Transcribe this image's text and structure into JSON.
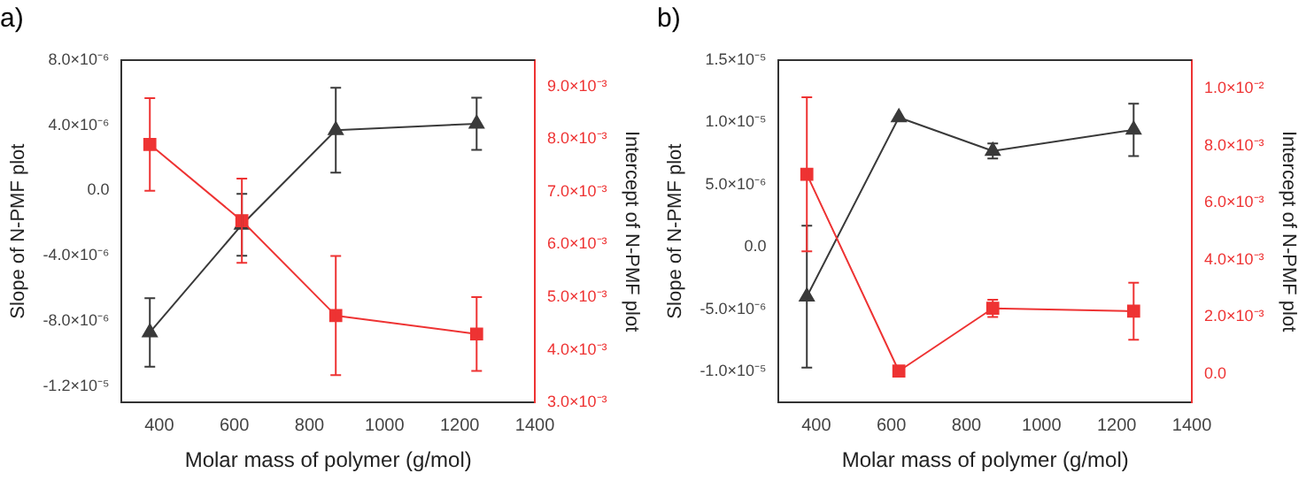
{
  "chart_data": [
    {
      "type": "line",
      "title": "a)",
      "xlabel": "Molar mass of polymer (g/mol)",
      "ylabel": "Slope of N-PMF plot",
      "y2label": "Intercept of N-PMF plot",
      "x": [
        375,
        620,
        870,
        1245
      ],
      "xlim": [
        300,
        1400
      ],
      "xticks": [
        400,
        600,
        800,
        1000,
        1200,
        1400
      ],
      "ylim": [
        -1.3e-05,
        8e-06
      ],
      "yticks": [
        {
          "value": -1.2e-05,
          "label": "-1.2×10⁻⁵"
        },
        {
          "value": -8e-06,
          "label": "-8.0×10⁻⁶"
        },
        {
          "value": -4e-06,
          "label": "-4.0×10⁻⁶"
        },
        {
          "value": 0,
          "label": "0.0"
        },
        {
          "value": 4e-06,
          "label": "4.0×10⁻⁶"
        },
        {
          "value": 8e-06,
          "label": "8.0×10⁻⁶"
        }
      ],
      "y2lim": [
        0.003,
        0.0095
      ],
      "y2ticks": [
        {
          "value": 0.003,
          "label": "3.0×10⁻³"
        },
        {
          "value": 0.004,
          "label": "4.0×10⁻³"
        },
        {
          "value": 0.005,
          "label": "5.0×10⁻³"
        },
        {
          "value": 0.006,
          "label": "6.0×10⁻³"
        },
        {
          "value": 0.007,
          "label": "7.0×10⁻³"
        },
        {
          "value": 0.008,
          "label": "8.0×10⁻³"
        },
        {
          "value": 0.009,
          "label": "9.0×10⁻³"
        }
      ],
      "series": [
        {
          "color": "#3a3a3a",
          "marker": "triangle",
          "values": [
            -8.7e-06,
            -2.1e-06,
            3.7e-06,
            4.1e-06
          ],
          "errors": [
            2.1e-06,
            1.9e-06,
            2.6e-06,
            1.6e-06
          ]
        },
        {
          "color": "#ee3333",
          "marker": "square",
          "axis": "y2",
          "values": [
            0.0079,
            0.00645,
            0.00465,
            0.0043
          ],
          "errors": [
            0.00088,
            0.0008,
            0.00113,
            0.0007
          ]
        }
      ]
    },
    {
      "type": "line",
      "title": "b)",
      "xlabel": "Molar mass of polymer (g/mol)",
      "ylabel": "Slope of N-PMF plot",
      "y2label": "Intercept of N-PMF plot",
      "x": [
        375,
        620,
        870,
        1245
      ],
      "xlim": [
        300,
        1400
      ],
      "xticks": [
        400,
        600,
        800,
        1000,
        1200,
        1400
      ],
      "ylim": [
        -1.25e-05,
        1.5e-05
      ],
      "yticks": [
        {
          "value": -1e-05,
          "label": "-1.0×10⁻⁵"
        },
        {
          "value": -5e-06,
          "label": "-5.0×10⁻⁶"
        },
        {
          "value": 0,
          "label": "0.0"
        },
        {
          "value": 5e-06,
          "label": "5.0×10⁻⁶"
        },
        {
          "value": 1e-05,
          "label": "1.0×10⁻⁵"
        },
        {
          "value": 1.5e-05,
          "label": "1.5×10⁻⁵"
        }
      ],
      "y2lim": [
        -0.001,
        0.011
      ],
      "y2ticks": [
        {
          "value": 0,
          "label": "0.0"
        },
        {
          "value": 0.002,
          "label": "2.0×10⁻³"
        },
        {
          "value": 0.004,
          "label": "4.0×10⁻³"
        },
        {
          "value": 0.006,
          "label": "6.0×10⁻³"
        },
        {
          "value": 0.008,
          "label": "8.0×10⁻³"
        },
        {
          "value": 0.01,
          "label": "1.0×10⁻²"
        }
      ],
      "series": [
        {
          "color": "#3a3a3a",
          "marker": "triangle",
          "values": [
            -4e-06,
            1.04e-05,
            7.7e-06,
            9.4e-06
          ],
          "errors": [
            5.7e-06,
            null,
            6e-07,
            2.1e-06
          ]
        },
        {
          "color": "#ee3333",
          "marker": "square",
          "axis": "y2",
          "values": [
            0.007,
            0.0001,
            0.0023,
            0.0022
          ],
          "errors": [
            0.0027,
            null,
            0.0003,
            0.001
          ]
        }
      ]
    }
  ]
}
